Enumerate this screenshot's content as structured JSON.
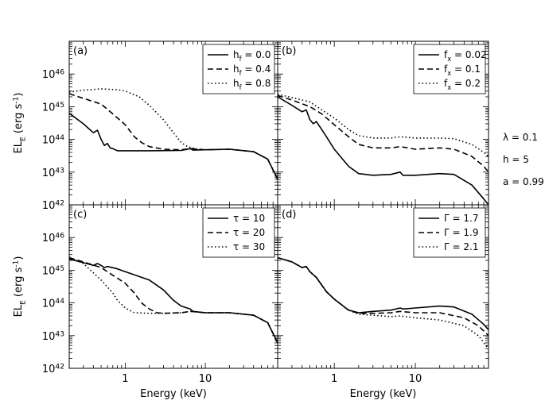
{
  "chart_data": [
    {
      "type": "line",
      "panel_label": "(a)",
      "xscale": "log",
      "yscale": "log",
      "xlim": [
        0.2,
        80
      ],
      "ylim": [
        1e+42,
        1e+47
      ],
      "x_ticks": [],
      "y_ticks": [
        "10^46",
        "10^45",
        "10^44",
        "10^43",
        "10^42"
      ],
      "xlabel": "",
      "ylabel": "EL_E (erg s^-1)",
      "legend_position": "top-right",
      "series": [
        {
          "name": "h_f = 0.0",
          "style": "solid",
          "points": [
            [
              0.2,
              6.3e+44
            ],
            [
              0.3,
              3e+44
            ],
            [
              0.4,
              1.6e+44
            ],
            [
              0.45,
              1.9e+44
            ],
            [
              0.5,
              1e+44
            ],
            [
              0.55,
              6.5e+43
            ],
            [
              0.6,
              7.5e+43
            ],
            [
              0.65,
              5.5e+43
            ],
            [
              0.7,
              5.2e+43
            ],
            [
              0.8,
              4.5e+43
            ],
            [
              1,
              4.5e+43
            ],
            [
              2,
              4.5e+43
            ],
            [
              5,
              4.6e+43
            ],
            [
              6.5,
              5.2e+43
            ],
            [
              7,
              4.7e+43
            ],
            [
              10,
              4.8e+43
            ],
            [
              20,
              5e+43
            ],
            [
              40,
              4.2e+43
            ],
            [
              60,
              2.5e+43
            ],
            [
              80,
              6e+42
            ]
          ]
        },
        {
          "name": "h_f = 0.4",
          "style": "dashed",
          "points": [
            [
              0.2,
              2.5e+45
            ],
            [
              0.3,
              1.8e+45
            ],
            [
              0.5,
              1.2e+45
            ],
            [
              0.7,
              6e+44
            ],
            [
              1,
              2.8e+44
            ],
            [
              1.3,
              1.2e+44
            ],
            [
              1.6,
              8e+43
            ],
            [
              2,
              6e+43
            ],
            [
              3,
              5e+43
            ],
            [
              5,
              4.8e+43
            ],
            [
              6.5,
              5.2e+43
            ],
            [
              10,
              4.8e+43
            ],
            [
              20,
              5e+43
            ],
            [
              40,
              4.2e+43
            ],
            [
              60,
              2.5e+43
            ],
            [
              80,
              6e+42
            ]
          ]
        },
        {
          "name": "h_f = 0.8",
          "style": "dotted",
          "points": [
            [
              0.2,
              2.8e+45
            ],
            [
              0.3,
              3.2e+45
            ],
            [
              0.5,
              3.5e+45
            ],
            [
              0.8,
              3.3e+45
            ],
            [
              1,
              3e+45
            ],
            [
              1.5,
              2e+45
            ],
            [
              2,
              1.1e+45
            ],
            [
              3,
              4e+44
            ],
            [
              4,
              1.6e+44
            ],
            [
              5,
              8e+43
            ],
            [
              6,
              6e+43
            ],
            [
              8,
              5e+43
            ],
            [
              10,
              4.8e+43
            ],
            [
              20,
              5e+43
            ],
            [
              40,
              4.2e+43
            ],
            [
              60,
              2.5e+43
            ],
            [
              80,
              6e+42
            ]
          ]
        }
      ]
    },
    {
      "type": "line",
      "panel_label": "(b)",
      "xscale": "log",
      "yscale": "log",
      "xlim": [
        0.2,
        80
      ],
      "ylim": [
        1e+42,
        1e+47
      ],
      "x_ticks": [],
      "y_ticks": [],
      "xlabel": "",
      "ylabel": "",
      "legend_position": "top-right",
      "series": [
        {
          "name": "f_x = 0.02",
          "style": "solid",
          "points": [
            [
              0.2,
              2e+45
            ],
            [
              0.3,
              1.1e+45
            ],
            [
              0.4,
              7e+44
            ],
            [
              0.45,
              8e+44
            ],
            [
              0.5,
              4e+44
            ],
            [
              0.55,
              3e+44
            ],
            [
              0.6,
              3.5e+44
            ],
            [
              0.7,
              2e+44
            ],
            [
              0.8,
              1.2e+44
            ],
            [
              1,
              5e+43
            ],
            [
              1.5,
              1.5e+43
            ],
            [
              2,
              9e+42
            ],
            [
              3,
              8e+42
            ],
            [
              5,
              8.5e+42
            ],
            [
              6.5,
              1e+43
            ],
            [
              7,
              8e+42
            ],
            [
              10,
              8e+42
            ],
            [
              20,
              9e+42
            ],
            [
              30,
              8.5e+42
            ],
            [
              50,
              4e+42
            ],
            [
              70,
              1.5e+42
            ],
            [
              80,
              1e+42
            ]
          ]
        },
        {
          "name": "f_x = 0.1",
          "style": "dashed",
          "points": [
            [
              0.2,
              2.2e+45
            ],
            [
              0.3,
              1.6e+45
            ],
            [
              0.5,
              1e+45
            ],
            [
              0.7,
              6e+44
            ],
            [
              1,
              2.8e+44
            ],
            [
              1.5,
              1.2e+44
            ],
            [
              2,
              7e+43
            ],
            [
              3,
              5.5e+43
            ],
            [
              5,
              5.5e+43
            ],
            [
              6.5,
              6e+43
            ],
            [
              10,
              5e+43
            ],
            [
              20,
              5.5e+43
            ],
            [
              30,
              5e+43
            ],
            [
              50,
              3e+43
            ],
            [
              70,
              1.5e+43
            ],
            [
              80,
              1e+43
            ]
          ]
        },
        {
          "name": "f_x = 0.2",
          "style": "dotted",
          "points": [
            [
              0.2,
              2.4e+45
            ],
            [
              0.3,
              1.9e+45
            ],
            [
              0.5,
              1.4e+45
            ],
            [
              0.7,
              8e+44
            ],
            [
              1,
              4.5e+44
            ],
            [
              1.5,
              2e+44
            ],
            [
              2,
              1.3e+44
            ],
            [
              3,
              1.1e+44
            ],
            [
              5,
              1.1e+44
            ],
            [
              6.5,
              1.2e+44
            ],
            [
              10,
              1.1e+44
            ],
            [
              20,
              1.1e+44
            ],
            [
              30,
              1.05e+44
            ],
            [
              50,
              7e+43
            ],
            [
              70,
              4e+43
            ],
            [
              80,
              3e+43
            ]
          ]
        }
      ]
    },
    {
      "type": "line",
      "panel_label": "(c)",
      "xscale": "log",
      "yscale": "log",
      "xlim": [
        0.2,
        80
      ],
      "ylim": [
        1e+42,
        1e+47
      ],
      "x_ticks": [
        "1",
        "10"
      ],
      "y_ticks": [
        "10^46",
        "10^45",
        "10^44",
        "10^43",
        "10^42"
      ],
      "xlabel": "Energy (keV)",
      "ylabel": "EL_E (erg s^-1)",
      "legend_position": "top-right",
      "series": [
        {
          "name": "τ = 10",
          "style": "solid",
          "points": [
            [
              0.2,
              2.2e+45
            ],
            [
              0.3,
              1.7e+45
            ],
            [
              0.4,
              1.4e+45
            ],
            [
              0.45,
              1.6e+45
            ],
            [
              0.5,
              1.4e+45
            ],
            [
              0.55,
              1.2e+45
            ],
            [
              0.6,
              1.3e+45
            ],
            [
              0.8,
              1.1e+45
            ],
            [
              1,
              9e+44
            ],
            [
              2,
              5e+44
            ],
            [
              3,
              2.5e+44
            ],
            [
              4,
              1.2e+44
            ],
            [
              5,
              8e+43
            ],
            [
              6.5,
              6.5e+43
            ],
            [
              7,
              5.5e+43
            ],
            [
              10,
              5e+43
            ],
            [
              20,
              5e+43
            ],
            [
              40,
              4.2e+43
            ],
            [
              60,
              2.5e+43
            ],
            [
              80,
              6e+42
            ]
          ]
        },
        {
          "name": "τ = 20",
          "style": "dashed",
          "points": [
            [
              0.2,
              2.4e+45
            ],
            [
              0.3,
              1.8e+45
            ],
            [
              0.5,
              1.2e+45
            ],
            [
              0.7,
              7e+44
            ],
            [
              1,
              4e+44
            ],
            [
              1.3,
              2e+44
            ],
            [
              1.6,
              1e+44
            ],
            [
              2,
              6.5e+43
            ],
            [
              2.5,
              5e+43
            ],
            [
              3,
              4.8e+43
            ],
            [
              5,
              5e+43
            ],
            [
              6.5,
              5.5e+43
            ],
            [
              10,
              5e+43
            ],
            [
              20,
              5e+43
            ],
            [
              40,
              4.2e+43
            ],
            [
              60,
              2.5e+43
            ],
            [
              80,
              6e+42
            ]
          ]
        },
        {
          "name": "τ = 30",
          "style": "dotted",
          "points": [
            [
              0.2,
              2.5e+45
            ],
            [
              0.3,
              1.6e+45
            ],
            [
              0.5,
              5e+44
            ],
            [
              0.7,
              2e+44
            ],
            [
              0.8,
              1.2e+44
            ],
            [
              1,
              7e+43
            ],
            [
              1.3,
              5e+43
            ],
            [
              2,
              4.8e+43
            ],
            [
              3,
              4.8e+43
            ],
            [
              5,
              5e+43
            ],
            [
              6.5,
              5.5e+43
            ],
            [
              10,
              5e+43
            ],
            [
              20,
              5e+43
            ],
            [
              40,
              4.2e+43
            ],
            [
              60,
              2.5e+43
            ],
            [
              80,
              6e+42
            ]
          ]
        }
      ]
    },
    {
      "type": "line",
      "panel_label": "(d)",
      "xscale": "log",
      "yscale": "log",
      "xlim": [
        0.2,
        80
      ],
      "ylim": [
        1e+42,
        1e+47
      ],
      "x_ticks": [
        "1",
        "10"
      ],
      "y_ticks": [],
      "xlabel": "Energy (keV)",
      "ylabel": "",
      "legend_position": "top-right",
      "series": [
        {
          "name": "Γ = 1.7",
          "style": "solid",
          "points": [
            [
              0.2,
              2.4e+45
            ],
            [
              0.3,
              1.8e+45
            ],
            [
              0.4,
              1.2e+45
            ],
            [
              0.45,
              1.3e+45
            ],
            [
              0.5,
              9e+44
            ],
            [
              0.6,
              6e+44
            ],
            [
              0.7,
              3.5e+44
            ],
            [
              0.8,
              2.2e+44
            ],
            [
              1,
              1.3e+44
            ],
            [
              1.5,
              6e+43
            ],
            [
              2,
              5e+43
            ],
            [
              3,
              5.5e+43
            ],
            [
              5,
              6e+43
            ],
            [
              6.5,
              7e+43
            ],
            [
              7,
              6.5e+43
            ],
            [
              10,
              7e+43
            ],
            [
              20,
              8e+43
            ],
            [
              30,
              7.5e+43
            ],
            [
              50,
              4.5e+43
            ],
            [
              70,
              2.2e+43
            ],
            [
              80,
              1.5e+43
            ]
          ]
        },
        {
          "name": "Γ = 1.9",
          "style": "dashed",
          "points": [
            [
              0.2,
              2.4e+45
            ],
            [
              0.3,
              1.8e+45
            ],
            [
              0.4,
              1.2e+45
            ],
            [
              0.45,
              1.3e+45
            ],
            [
              0.5,
              9e+44
            ],
            [
              0.6,
              6e+44
            ],
            [
              0.7,
              3.5e+44
            ],
            [
              0.8,
              2.2e+44
            ],
            [
              1,
              1.3e+44
            ],
            [
              1.5,
              6e+43
            ],
            [
              2,
              4.8e+43
            ],
            [
              3,
              4.8e+43
            ],
            [
              5,
              5e+43
            ],
            [
              6.5,
              5.5e+43
            ],
            [
              10,
              5e+43
            ],
            [
              20,
              5e+43
            ],
            [
              40,
              3.5e+43
            ],
            [
              60,
              2e+43
            ],
            [
              80,
              1e+43
            ]
          ]
        },
        {
          "name": "Γ = 2.1",
          "style": "dotted",
          "points": [
            [
              0.2,
              2.4e+45
            ],
            [
              0.3,
              1.8e+45
            ],
            [
              0.4,
              1.2e+45
            ],
            [
              0.45,
              1.3e+45
            ],
            [
              0.5,
              9e+44
            ],
            [
              0.6,
              6e+44
            ],
            [
              0.7,
              3.5e+44
            ],
            [
              0.8,
              2.2e+44
            ],
            [
              1,
              1.3e+44
            ],
            [
              1.5,
              6e+43
            ],
            [
              2,
              4.5e+43
            ],
            [
              3,
              4.2e+43
            ],
            [
              5,
              3.8e+43
            ],
            [
              6.5,
              4e+43
            ],
            [
              10,
              3.5e+43
            ],
            [
              20,
              3e+43
            ],
            [
              40,
              2e+43
            ],
            [
              60,
              1e+43
            ],
            [
              80,
              4e+42
            ]
          ]
        }
      ]
    }
  ],
  "annotations": [
    "λ = 0.1",
    "h = 5",
    "a = 0.99"
  ]
}
